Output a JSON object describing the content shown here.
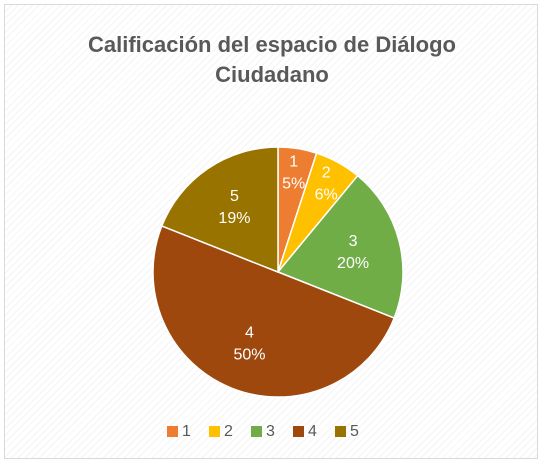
{
  "chart_data": {
    "type": "pie",
    "title": "Calificación del espacio de Diálogo Ciudadano",
    "categories": [
      "1",
      "2",
      "3",
      "4",
      "5"
    ],
    "values": [
      5,
      6,
      20,
      50,
      19
    ],
    "value_labels": [
      "5%",
      "6%",
      "20%",
      "50%",
      "19%"
    ],
    "colors": [
      "#ED7D31",
      "#FFC000",
      "#70AD47",
      "#9E480E",
      "#997300"
    ],
    "legend": "bottom"
  }
}
